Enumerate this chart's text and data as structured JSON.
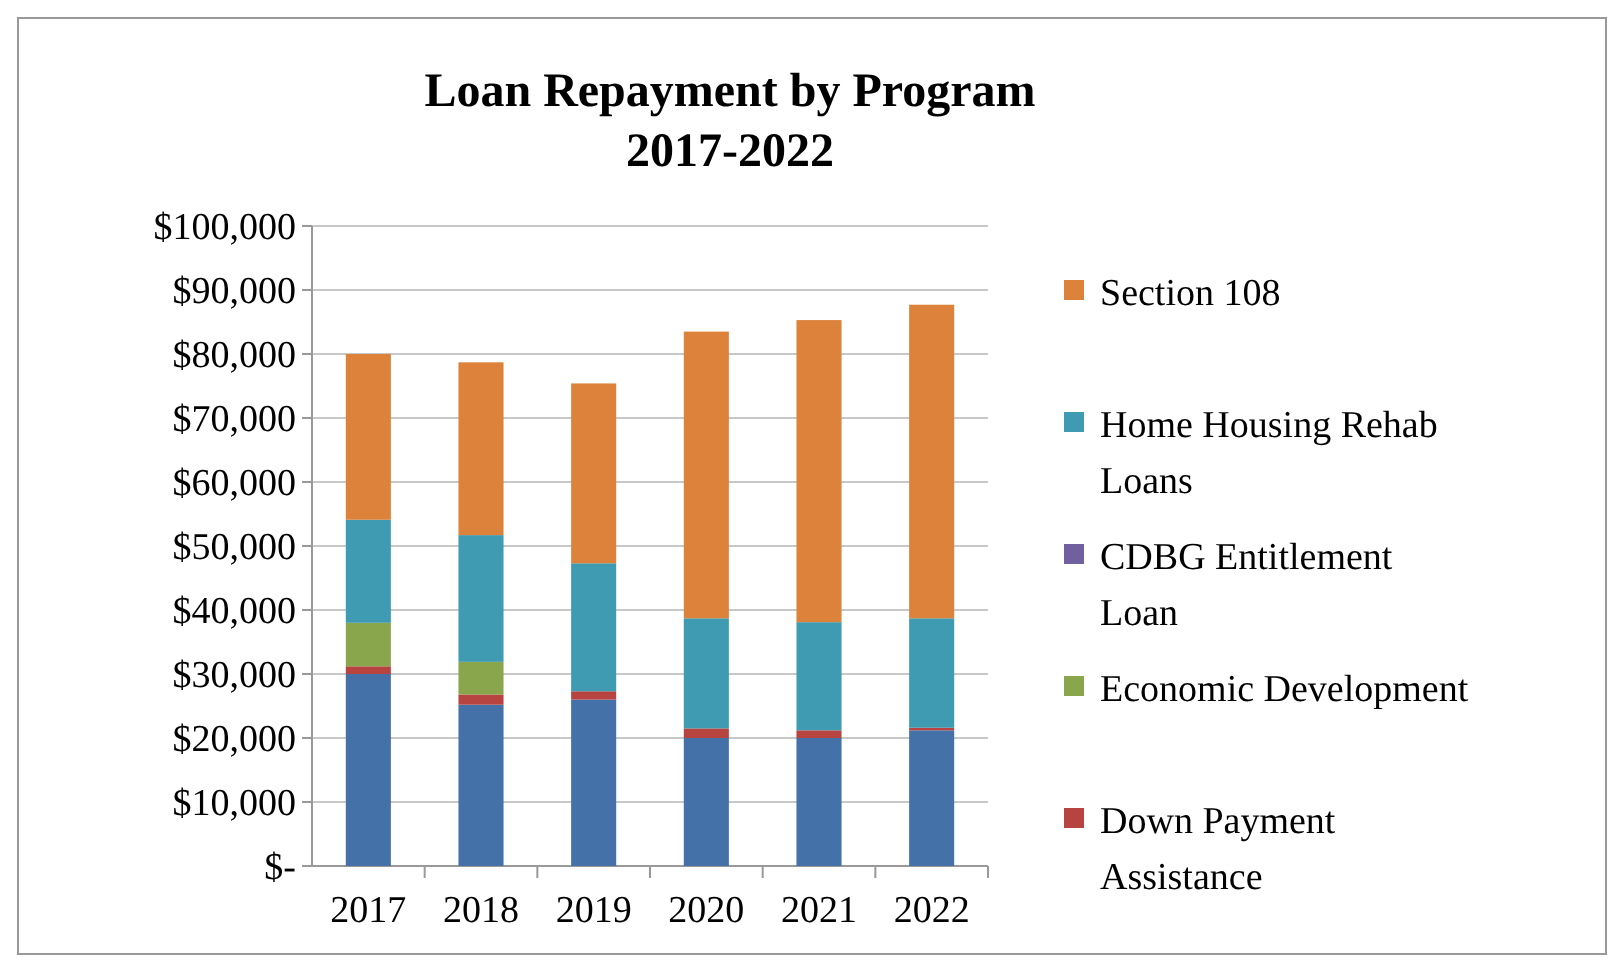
{
  "chart_data": {
    "type": "bar",
    "title": "Loan Repayment by Program\n2017-2022",
    "categories": [
      "2017",
      "2018",
      "2019",
      "2020",
      "2021",
      "2022"
    ],
    "stacked": true,
    "ylim": [
      0,
      100000
    ],
    "yticks": [
      {
        "value": 0,
        "label": "$-"
      },
      {
        "value": 10000,
        "label": "$10,000"
      },
      {
        "value": 20000,
        "label": "$20,000"
      },
      {
        "value": 30000,
        "label": "$30,000"
      },
      {
        "value": 40000,
        "label": "$40,000"
      },
      {
        "value": 50000,
        "label": "$50,000"
      },
      {
        "value": 60000,
        "label": "$60,000"
      },
      {
        "value": 70000,
        "label": "$70,000"
      },
      {
        "value": 80000,
        "label": "$80,000"
      },
      {
        "value": 90000,
        "label": "$90,000"
      },
      {
        "value": 100000,
        "label": "$100,000"
      }
    ],
    "grid": "y",
    "legend": "right",
    "series": [
      {
        "color": "#4471a8",
        "values": [
          30000,
          25200,
          26000,
          20000,
          20000,
          21200
        ]
      },
      {
        "name": "Down Payment Assistance",
        "color": "#b84441",
        "values": [
          1200,
          1600,
          1300,
          1500,
          1200,
          400
        ]
      },
      {
        "name": "Economic Development",
        "color": "#8aa64c",
        "values": [
          6800,
          5100,
          0,
          0,
          0,
          0
        ]
      },
      {
        "name": "CDBG Entitlement Loan",
        "color": "#7160a0",
        "values": [
          0,
          0,
          0,
          0,
          0,
          0
        ]
      },
      {
        "name": "Home Housing Rehab Loans",
        "color": "#3e9bb1",
        "values": [
          16100,
          19800,
          20000,
          17200,
          16900,
          17100
        ]
      },
      {
        "name": "Section 108",
        "color": "#dc823b",
        "values": [
          25900,
          27000,
          28100,
          44800,
          47200,
          49000
        ]
      }
    ]
  }
}
